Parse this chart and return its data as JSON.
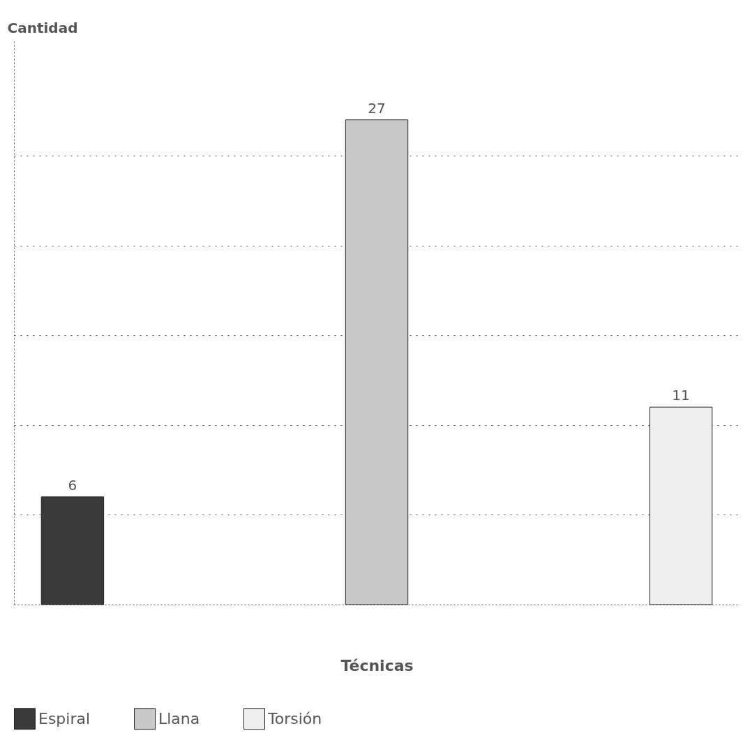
{
  "chart_data": {
    "type": "bar",
    "ylabel": "Cantidad",
    "xlabel": "Técnicas",
    "categories": [
      null,
      null,
      null
    ],
    "series": [
      {
        "name": "Espiral",
        "color": "#3a3a3a",
        "values": [
          6,
          null,
          null
        ]
      },
      {
        "name": "Llana",
        "color": "#c8c8c8",
        "values": [
          null,
          27,
          null
        ]
      },
      {
        "name": "Torsión",
        "color": "#eeeeee",
        "values": [
          null,
          null,
          11
        ]
      }
    ],
    "ylim": [
      0,
      31.5
    ],
    "yticks": [
      {
        "value": 5,
        "label": null
      },
      {
        "value": 10,
        "label": null
      },
      {
        "value": 15,
        "label": null
      },
      {
        "value": 20,
        "label": null
      },
      {
        "value": 25,
        "label": null
      }
    ],
    "stacked": true,
    "grid": "y",
    "legend": "bottom",
    "data_labels": true
  }
}
